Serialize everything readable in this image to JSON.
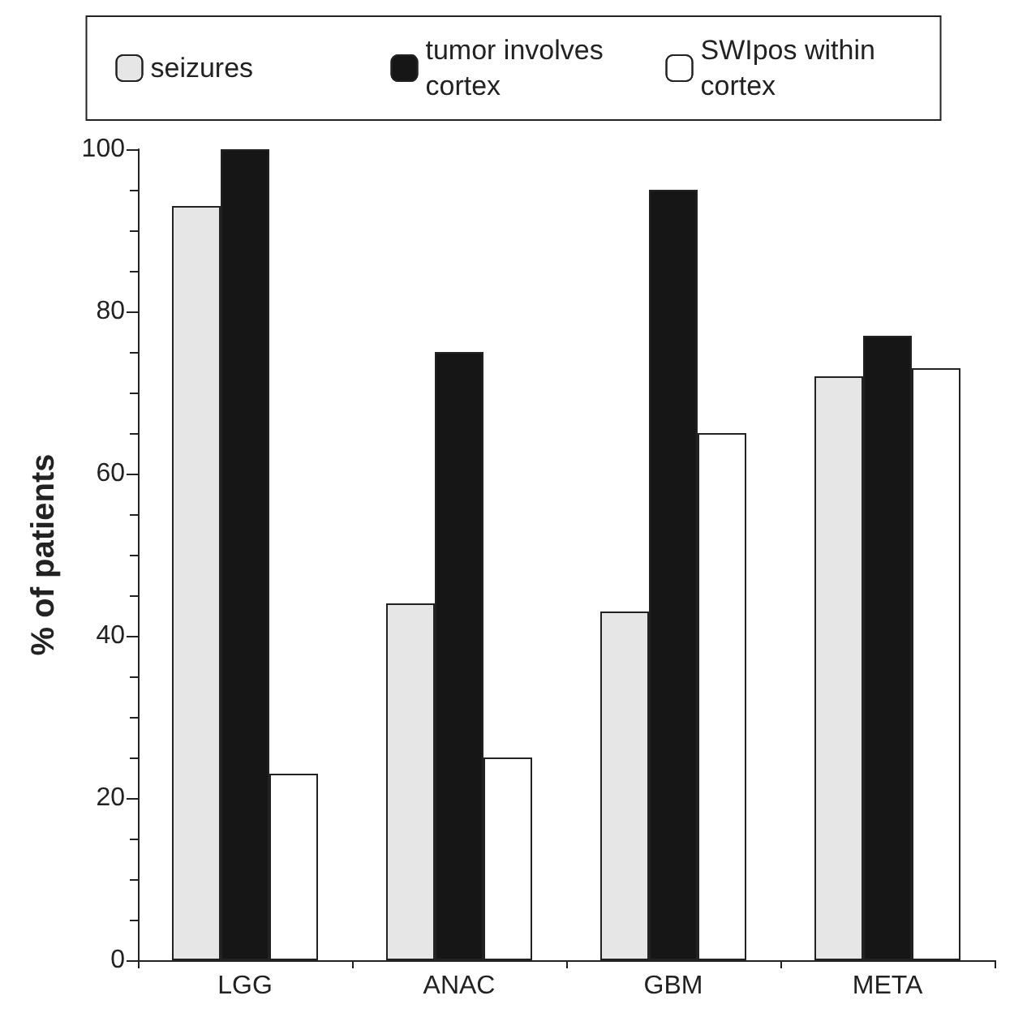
{
  "chart_data": {
    "type": "bar",
    "ylabel": "% of patients",
    "categories": [
      "LGG",
      "ANAC",
      "GBM",
      "META"
    ],
    "series": [
      {
        "name": "seizures",
        "color": "#e6e6e6",
        "values": [
          93,
          44,
          43,
          72
        ]
      },
      {
        "name": "tumor involves cortex",
        "color": "#161616",
        "values": [
          100,
          75,
          95,
          77
        ]
      },
      {
        "name": "SWIpos within cortex",
        "color": "#ffffff",
        "values": [
          23,
          25,
          65,
          73
        ]
      }
    ],
    "ylim": [
      0,
      100
    ],
    "yticks": [
      0,
      20,
      40,
      60,
      80,
      100
    ],
    "grid": false,
    "legend": "top"
  }
}
